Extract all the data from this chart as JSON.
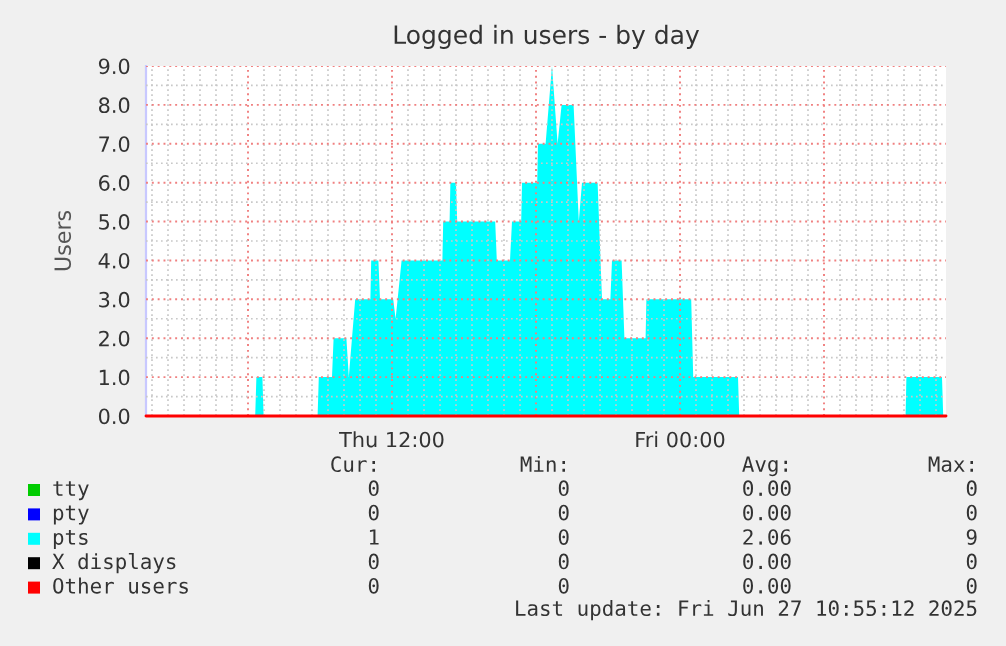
{
  "chart_data": {
    "type": "area",
    "title": "Logged in users - by day",
    "ylabel": "Users",
    "xlim": [
      "2025-06-26T01:45",
      "2025-06-27T11:05"
    ],
    "ylim": [
      0,
      9.0
    ],
    "xticks": [
      {
        "value": "2025-06-26T06:00",
        "label": null
      },
      {
        "value": "2025-06-26T12:00",
        "label": "Thu 12:00"
      },
      {
        "value": "2025-06-26T18:00",
        "label": null
      },
      {
        "value": "2025-06-27T00:00",
        "label": "Fri 00:00"
      },
      {
        "value": "2025-06-27T06:00",
        "label": null
      }
    ],
    "yticks": [
      {
        "value": 0,
        "label": "0.0"
      },
      {
        "value": 1,
        "label": "1.0"
      },
      {
        "value": 2,
        "label": "2.0"
      },
      {
        "value": 3,
        "label": "3.0"
      },
      {
        "value": 4,
        "label": "4.0"
      },
      {
        "value": 5,
        "label": "5.0"
      },
      {
        "value": 6,
        "label": "6.0"
      },
      {
        "value": 7,
        "label": "7.0"
      },
      {
        "value": 8,
        "label": "8.0"
      },
      {
        "value": 9,
        "label": "9.0"
      }
    ],
    "grid": true,
    "legend": "bottom",
    "series": [
      {
        "name": "tty",
        "type": "line",
        "color": "#00cc00"
      },
      {
        "name": "pty",
        "type": "line",
        "color": "#0000ff"
      },
      {
        "name": "pts",
        "color": "#00ffff",
        "x": [
          "2025-06-26T01:45",
          "2025-06-26T06:18",
          "2025-06-26T06:21",
          "2025-06-26T06:36",
          "2025-06-26T06:39",
          "2025-06-26T08:54",
          "2025-06-26T08:57",
          "2025-06-26T09:30",
          "2025-06-26T09:34",
          "2025-06-26T10:06",
          "2025-06-26T10:12",
          "2025-06-26T10:28",
          "2025-06-26T11:06",
          "2025-06-26T11:08",
          "2025-06-26T11:26",
          "2025-06-26T11:30",
          "2025-06-26T12:03",
          "2025-06-26T12:09",
          "2025-06-26T12:24",
          "2025-06-26T14:06",
          "2025-06-26T14:08",
          "2025-06-26T14:24",
          "2025-06-26T14:26",
          "2025-06-26T14:40",
          "2025-06-26T14:43",
          "2025-06-26T16:18",
          "2025-06-26T16:22",
          "2025-06-26T16:55",
          "2025-06-26T17:00",
          "2025-06-26T17:23",
          "2025-06-26T17:25",
          "2025-06-26T18:03",
          "2025-06-26T18:05",
          "2025-06-26T18:24",
          "2025-06-26T18:40",
          "2025-06-26T18:54",
          "2025-06-26T19:04",
          "2025-06-26T19:34",
          "2025-06-26T19:47",
          "2025-06-26T19:55",
          "2025-06-26T20:34",
          "2025-06-26T20:45",
          "2025-06-26T20:50",
          "2025-06-26T21:06",
          "2025-06-26T21:10",
          "2025-06-26T21:34",
          "2025-06-26T21:41",
          "2025-06-26T22:34",
          "2025-06-26T22:36",
          "2025-06-27T00:28",
          "2025-06-27T00:33",
          "2025-06-27T02:25",
          "2025-06-27T02:28",
          "2025-06-27T09:24",
          "2025-06-27T09:26",
          "2025-06-27T10:55",
          "2025-06-27T10:58"
        ],
        "values": [
          0,
          0,
          1,
          1,
          0,
          0,
          1,
          1,
          2,
          2,
          1,
          3,
          3,
          4,
          4,
          3,
          3,
          2.5,
          4,
          4,
          5,
          5,
          6,
          6,
          5,
          5,
          4,
          4,
          5,
          5,
          6,
          6,
          7,
          7,
          9,
          7,
          8,
          8,
          5,
          6,
          6,
          3,
          3,
          3,
          4,
          4,
          2,
          2,
          3,
          3,
          1,
          1,
          0,
          0,
          1,
          1,
          0
        ]
      },
      {
        "name": "X displays",
        "type": "line",
        "color": "#000000"
      },
      {
        "name": "Other users",
        "type": "line",
        "color": "#ff0000",
        "x": [
          "2025-06-26T01:45",
          "2025-06-27T11:05"
        ],
        "values": [
          0,
          0
        ]
      }
    ],
    "annotations": [
      "Cur:",
      "Min:",
      "Avg:",
      "Max:",
      "0",
      "0",
      "0.00",
      "0",
      "0",
      "0",
      "0.00",
      "0",
      "1",
      "0",
      "2.06",
      "9",
      "0",
      "0",
      "0.00",
      "0",
      "0",
      "0",
      "0.00",
      "0",
      "Last update: Fri Jun 27 10:55:12 2025"
    ]
  }
}
